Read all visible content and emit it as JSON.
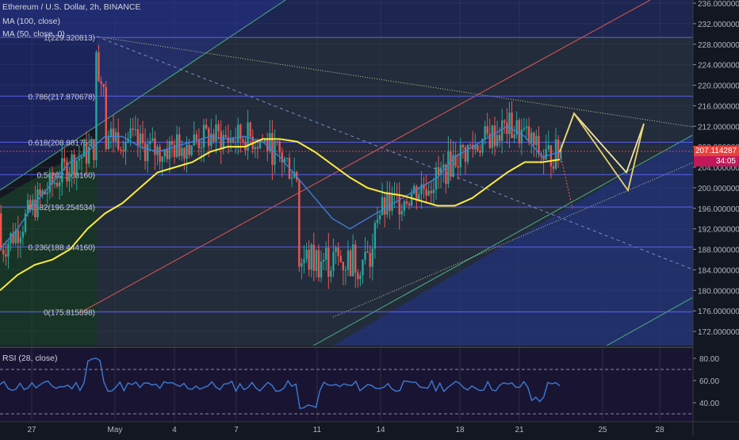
{
  "header": {
    "symbol_line": "Ethereum / U.S. Dollar, 2h, BINANCE",
    "ma100_label": "MA (100, close)",
    "ma50_label": "MA (50, close, 0)"
  },
  "rsi_panel": {
    "label": "RSI (28, close)",
    "ticks": [
      "80.00",
      "60.00",
      "40.00"
    ],
    "levels": [
      70,
      30
    ]
  },
  "last_price": {
    "value": "207.114287",
    "countdown": "34:05",
    "price_color": "#e8413b",
    "countdown_color": "#c2185b"
  },
  "colors": {
    "background": "#131722",
    "up_candle": "#26a69a",
    "down_candle": "#ef5350",
    "ma100": "#ffeb3b",
    "ma50": "#3f7fd9",
    "fib_line": "#5b5ff0",
    "rsi_line": "#3a7bd5"
  },
  "chart_data": {
    "type": "candlestick",
    "title": "Ethereum / U.S. Dollar, 2h, BINANCE",
    "ylim": [
      168,
      237
    ],
    "y_ticks": [
      "236.000000",
      "232.000000",
      "228.000000",
      "224.000000",
      "220.000000",
      "216.000000",
      "212.000000",
      "208.000000",
      "204.000000",
      "200.000000",
      "196.000000",
      "192.000000",
      "188.000000",
      "184.000000",
      "180.000000",
      "176.000000",
      "172.000000"
    ],
    "x_ticks": [
      "27",
      "May",
      "4",
      "7",
      "11",
      "14",
      "18",
      "21",
      "25",
      "28"
    ],
    "grid": true,
    "fib_levels": [
      {
        "label": "1(229.320813)",
        "value": 229.320813
      },
      {
        "label": "0.786(217.870678)",
        "value": 217.870678
      },
      {
        "label": "0.618(208.881756)",
        "value": 208.881756
      },
      {
        "label": "0.5(202.568160)",
        "value": 202.56816
      },
      {
        "label": "0.382(196.254534)",
        "value": 196.254534
      },
      {
        "label": "0.236(188.444160)",
        "value": 188.44416
      },
      {
        "label": "0(175.815598)",
        "value": 175.815598
      }
    ],
    "series": [
      {
        "name": "MA (100, close)",
        "values": [
          180,
          183,
          185,
          186,
          188,
          192,
          195,
          197,
          200,
          203,
          204,
          205,
          207,
          208,
          208,
          209.5,
          209.5,
          209,
          207,
          204.5,
          202,
          200,
          199,
          198.5,
          197.5,
          196.5,
          196.5,
          198,
          200.5,
          203,
          205,
          205,
          205.5
        ]
      },
      {
        "name": "MA (50, close, 0)",
        "values": [
          188,
          192,
          197,
          201,
          205,
          207,
          210,
          210,
          208,
          207,
          208,
          209,
          210,
          209.5,
          210,
          209,
          206,
          202,
          198,
          194,
          192,
          194,
          196,
          198,
          200,
          202,
          206,
          208,
          210,
          212,
          210,
          206,
          207
        ]
      }
    ],
    "last_value": 207.114287,
    "projection_points": [
      207,
      214.5,
      203,
      212.5,
      200,
      212.5
    ]
  }
}
